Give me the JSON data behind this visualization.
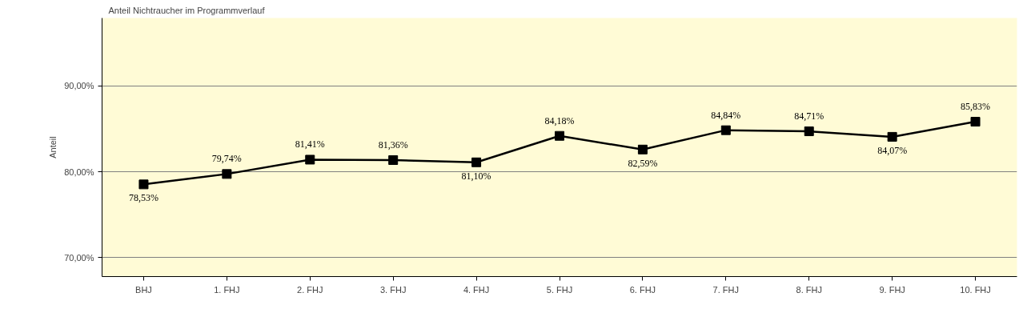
{
  "chart_data": {
    "type": "line",
    "title": "Anteil Nichtraucher im Programmverlauf",
    "ylabel": "Anteil",
    "categories": [
      "BHJ",
      "1. FHJ",
      "2. FHJ",
      "3. FHJ",
      "4. FHJ",
      "5. FHJ",
      "6. FHJ",
      "7. FHJ",
      "8. FHJ",
      "9. FHJ",
      "10. FHJ"
    ],
    "series": [
      {
        "color": "#000000",
        "values": [
          78.53,
          79.74,
          81.41,
          81.36,
          81.1,
          84.18,
          82.59,
          84.84,
          84.71,
          84.07,
          85.83
        ],
        "value_labels": [
          "78,53%",
          "79,74%",
          "81,41%",
          "81,36%",
          "81,10%",
          "84,18%",
          "82,59%",
          "84,84%",
          "84,71%",
          "84,07%",
          "85,83%"
        ]
      }
    ],
    "ylim": [
      67.8,
      97.9
    ],
    "yticks": [
      {
        "value": 70,
        "label": "70,00%"
      },
      {
        "value": 80,
        "label": "80,00%"
      },
      {
        "value": 90,
        "label": "90,00%"
      }
    ],
    "grid": "y",
    "marker": "square",
    "line_style": "solid"
  }
}
